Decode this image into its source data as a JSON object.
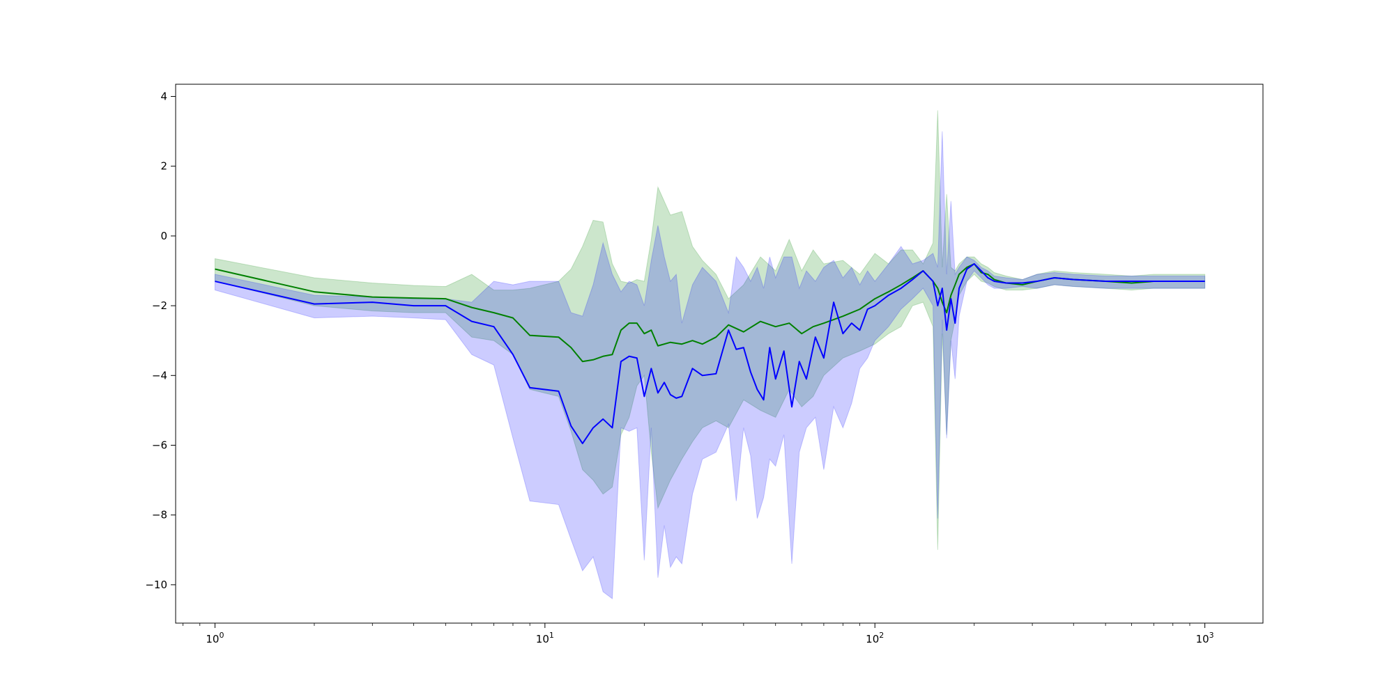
{
  "chart_data": {
    "type": "line",
    "title": "",
    "xlabel": "",
    "ylabel": "",
    "xscale": "log",
    "xlim": [
      0.76,
      1500
    ],
    "ylim": [
      -11.1,
      4.35
    ],
    "grid": false,
    "legend": "none",
    "x_ticks": [
      {
        "value": 1,
        "base": "10",
        "exp": "0"
      },
      {
        "value": 10,
        "base": "10",
        "exp": "1"
      },
      {
        "value": 100,
        "base": "10",
        "exp": "2"
      },
      {
        "value": 1000,
        "base": "10",
        "exp": "3"
      }
    ],
    "y_ticks": [
      {
        "value": 4,
        "label": "4"
      },
      {
        "value": 2,
        "label": "2"
      },
      {
        "value": 0,
        "label": "0"
      },
      {
        "value": -2,
        "label": "−2"
      },
      {
        "value": -4,
        "label": "−4"
      },
      {
        "value": -6,
        "label": "−6"
      },
      {
        "value": -8,
        "label": "−8"
      },
      {
        "value": -10,
        "label": "−10"
      }
    ],
    "series": [
      {
        "color": "#008000",
        "band_color": "#008000",
        "band_opacity": 0.2,
        "x": [
          1,
          2,
          3,
          4,
          5,
          6,
          7,
          8,
          9,
          11,
          12,
          13,
          14,
          15,
          16,
          17,
          18,
          19,
          20,
          21,
          22,
          24,
          26,
          28,
          30,
          33,
          36,
          40,
          45,
          50,
          55,
          60,
          65,
          70,
          80,
          90,
          100,
          110,
          120,
          130,
          140,
          150,
          155,
          160,
          165,
          170,
          175,
          180,
          190,
          200,
          210,
          220,
          230,
          250,
          280,
          310,
          350,
          400,
          500,
          600,
          700,
          800,
          900,
          1000
        ],
        "mean": [
          -0.95,
          -1.6,
          -1.75,
          -1.78,
          -1.8,
          -2.05,
          -2.2,
          -2.35,
          -2.85,
          -2.9,
          -3.2,
          -3.6,
          -3.55,
          -3.45,
          -3.4,
          -2.7,
          -2.5,
          -2.5,
          -2.8,
          -2.7,
          -3.15,
          -3.05,
          -3.1,
          -3.0,
          -3.1,
          -2.9,
          -2.55,
          -2.75,
          -2.45,
          -2.6,
          -2.5,
          -2.8,
          -2.6,
          -2.5,
          -2.3,
          -2.1,
          -1.8,
          -1.6,
          -1.4,
          -1.2,
          -1.0,
          -1.3,
          -1.5,
          -1.9,
          -2.2,
          -1.7,
          -1.4,
          -1.1,
          -0.9,
          -0.8,
          -1.05,
          -1.1,
          -1.25,
          -1.35,
          -1.4,
          -1.3,
          -1.2,
          -1.25,
          -1.3,
          -1.35,
          -1.3,
          -1.3,
          -1.3,
          -1.3
        ],
        "upper": [
          -0.65,
          -1.2,
          -1.35,
          -1.42,
          -1.45,
          -1.1,
          -1.55,
          -1.55,
          -1.5,
          -1.3,
          -0.95,
          -0.3,
          0.45,
          0.4,
          -0.8,
          -1.3,
          -1.35,
          -1.25,
          -1.3,
          -0.1,
          1.4,
          0.6,
          0.7,
          -0.3,
          -0.7,
          -1.1,
          -1.8,
          -1.4,
          -0.6,
          -1.0,
          -0.1,
          -1.0,
          -0.4,
          -0.8,
          -0.7,
          -1.1,
          -0.5,
          -0.8,
          -0.4,
          -0.4,
          -0.8,
          -0.2,
          3.6,
          -0.9,
          1.2,
          -0.9,
          -1.0,
          -0.8,
          -0.6,
          -0.6,
          -0.8,
          -0.9,
          -1.05,
          -1.15,
          -1.25,
          -1.1,
          -1.0,
          -1.05,
          -1.1,
          -1.15,
          -1.1,
          -1.1,
          -1.1,
          -1.1
        ],
        "lower": [
          -1.3,
          -2.0,
          -2.15,
          -2.2,
          -2.2,
          -2.9,
          -3.0,
          -3.4,
          -4.4,
          -4.6,
          -5.6,
          -6.7,
          -7.0,
          -7.4,
          -7.2,
          -5.7,
          -5.2,
          -4.3,
          -4.0,
          -6.2,
          -7.8,
          -7.0,
          -6.4,
          -5.9,
          -5.5,
          -5.3,
          -5.5,
          -4.7,
          -5.0,
          -5.2,
          -4.4,
          -4.9,
          -4.6,
          -4.0,
          -3.5,
          -3.3,
          -3.1,
          -2.8,
          -2.6,
          -2.0,
          -1.9,
          -2.6,
          -9.0,
          -2.8,
          -5.7,
          -3.0,
          -2.4,
          -1.7,
          -1.3,
          -1.1,
          -1.3,
          -1.35,
          -1.45,
          -1.55,
          -1.55,
          -1.5,
          -1.4,
          -1.45,
          -1.5,
          -1.55,
          -1.5,
          -1.5,
          -1.5,
          -1.5
        ]
      },
      {
        "color": "#0000ff",
        "band_color": "#0000ff",
        "band_opacity": 0.2,
        "x": [
          1,
          2,
          3,
          4,
          5,
          6,
          7,
          8,
          9,
          11,
          12,
          13,
          14,
          15,
          16,
          17,
          18,
          19,
          20,
          21,
          22,
          23,
          24,
          25,
          26,
          28,
          30,
          33,
          36,
          38,
          40,
          42,
          44,
          46,
          48,
          50,
          53,
          56,
          59,
          62,
          66,
          70,
          75,
          80,
          85,
          90,
          95,
          100,
          110,
          120,
          130,
          140,
          150,
          155,
          160,
          165,
          170,
          175,
          180,
          190,
          200,
          210,
          220,
          230,
          250,
          280,
          310,
          350,
          400,
          500,
          600,
          700,
          800,
          900,
          1000
        ],
        "mean": [
          -1.3,
          -1.95,
          -1.9,
          -2.0,
          -2.0,
          -2.45,
          -2.6,
          -3.4,
          -4.35,
          -4.45,
          -5.45,
          -5.95,
          -5.5,
          -5.25,
          -5.5,
          -3.6,
          -3.45,
          -3.5,
          -4.6,
          -3.8,
          -4.5,
          -4.2,
          -4.55,
          -4.65,
          -4.6,
          -3.8,
          -4.0,
          -3.95,
          -2.7,
          -3.25,
          -3.2,
          -3.9,
          -4.4,
          -4.7,
          -3.2,
          -4.1,
          -3.3,
          -4.9,
          -3.6,
          -4.1,
          -2.9,
          -3.5,
          -1.9,
          -2.8,
          -2.5,
          -2.7,
          -2.1,
          -2.0,
          -1.7,
          -1.5,
          -1.25,
          -1.0,
          -1.3,
          -2.0,
          -1.5,
          -2.7,
          -1.8,
          -2.5,
          -1.5,
          -0.95,
          -0.8,
          -1.0,
          -1.2,
          -1.3,
          -1.35,
          -1.35,
          -1.3,
          -1.2,
          -1.25,
          -1.3,
          -1.3,
          -1.3,
          -1.3,
          -1.3,
          -1.3
        ],
        "upper": [
          -1.1,
          -1.7,
          -1.75,
          -1.8,
          -1.8,
          -1.9,
          -1.3,
          -1.4,
          -1.3,
          -1.3,
          -2.2,
          -2.3,
          -1.4,
          -0.2,
          -1.1,
          -1.6,
          -1.3,
          -1.4,
          -2.0,
          -0.7,
          0.3,
          -0.6,
          -1.3,
          -1.1,
          -2.5,
          -1.4,
          -0.9,
          -1.3,
          -2.2,
          -0.6,
          -0.9,
          -1.3,
          -0.9,
          -1.5,
          -0.6,
          -1.2,
          -0.6,
          -0.6,
          -1.5,
          -1.0,
          -1.3,
          -0.9,
          -0.7,
          -1.2,
          -0.9,
          -1.4,
          -1.0,
          -1.3,
          -0.8,
          -0.3,
          -0.8,
          -0.7,
          -0.5,
          -0.9,
          3.0,
          -1.1,
          1.0,
          -1.1,
          -0.9,
          -0.6,
          -0.7,
          -0.9,
          -1.0,
          -1.15,
          -1.2,
          -1.25,
          -1.1,
          -1.05,
          -1.1,
          -1.15,
          -1.15,
          -1.15,
          -1.15,
          -1.15,
          -1.15
        ],
        "lower": [
          -1.55,
          -2.35,
          -2.3,
          -2.35,
          -2.4,
          -3.4,
          -3.7,
          -5.8,
          -7.6,
          -7.7,
          -8.7,
          -9.6,
          -9.2,
          -10.2,
          -10.4,
          -5.5,
          -5.6,
          -5.5,
          -9.3,
          -5.5,
          -9.8,
          -8.3,
          -9.5,
          -9.2,
          -9.4,
          -7.4,
          -6.4,
          -6.2,
          -5.4,
          -7.6,
          -5.5,
          -6.3,
          -8.1,
          -7.5,
          -6.4,
          -6.6,
          -5.7,
          -9.4,
          -6.2,
          -5.5,
          -5.2,
          -6.7,
          -4.9,
          -5.5,
          -4.8,
          -3.8,
          -3.5,
          -3.0,
          -2.6,
          -2.1,
          -1.8,
          -1.5,
          -2.0,
          -8.1,
          -2.4,
          -5.8,
          -3.0,
          -4.1,
          -2.3,
          -1.3,
          -1.0,
          -1.2,
          -1.4,
          -1.5,
          -1.5,
          -1.45,
          -1.5,
          -1.4,
          -1.45,
          -1.5,
          -1.5,
          -1.5,
          -1.5,
          -1.5,
          -1.5
        ]
      }
    ]
  }
}
